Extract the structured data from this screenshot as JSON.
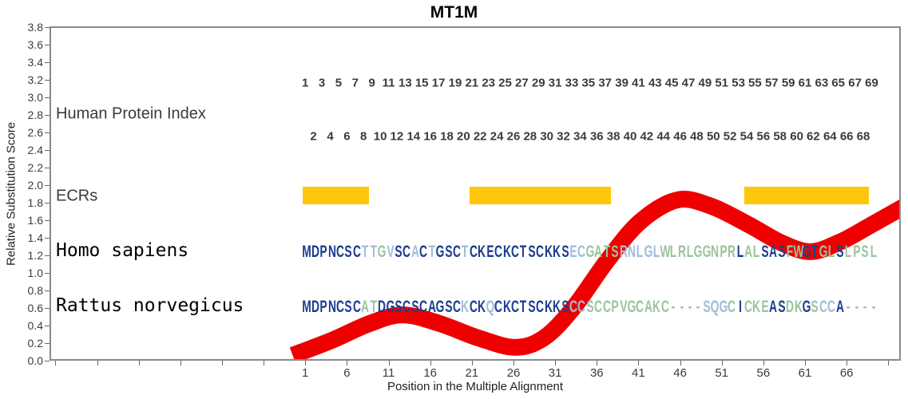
{
  "title": {
    "text": "MT1M"
  },
  "y_axis": {
    "label": "Relative Substitution Score",
    "tick_labels": [
      "3.8",
      "3.6",
      "3.4",
      "3.2",
      "3.0",
      "2.8",
      "2.6",
      "2.4",
      "2.2",
      "2.0",
      "1.8",
      "1.6",
      "1.4",
      "1.2",
      "1.0",
      "0.8",
      "0.6",
      "0.4",
      "0.2",
      "0.0"
    ]
  },
  "x_axis": {
    "label": "Position in the Multiple Alignment",
    "tick_labels": [
      1,
      6,
      11,
      16,
      21,
      26,
      31,
      36,
      41,
      46,
      51,
      56,
      61,
      66
    ]
  },
  "rows": {
    "index": {
      "label": "Human Protein Index",
      "odd_numbers": [
        1,
        3,
        5,
        7,
        9,
        11,
        13,
        15,
        17,
        19,
        21,
        23,
        25,
        27,
        29,
        31,
        33,
        35,
        37,
        39,
        41,
        43,
        45,
        47,
        49,
        51,
        53,
        55,
        57,
        59,
        61,
        63,
        65,
        67,
        69
      ],
      "even_numbers": [
        2,
        4,
        6,
        8,
        10,
        12,
        14,
        16,
        18,
        20,
        22,
        24,
        26,
        28,
        30,
        32,
        34,
        36,
        38,
        40,
        42,
        44,
        46,
        48,
        50,
        52,
        54,
        56,
        58,
        60,
        62,
        64,
        66,
        68
      ]
    },
    "ecrs": {
      "label": "ECRs",
      "bar_color": "#FFC60A",
      "regions": [
        {
          "start": 1,
          "end": 8
        },
        {
          "start": 21,
          "end": 37
        },
        {
          "start": 54,
          "end": 68
        }
      ]
    },
    "homo": {
      "label": "Homo sapiens",
      "sequence": "MDPNCSCTTGVSCACTGSCTCKECKCTSCKKSECGATSRNLGLWLRLGGNPRLALSASFWGTGLSLPSL",
      "letter_colors": "nnnnnnnbbgbnnbnbnnnbnnnnnnnnnnnnbbggggbbbbbgggggggggnggnnnggnnggngggg"
    },
    "rattus": {
      "label": "Rattus norvegicus",
      "sequence": "MDPNCSCATDGSCSCAGSCKCKQCKCTSCKKSCCSCCPVGCAKC----SQGCICKEASDKGSCCA----",
      "letter_colors": "nnnnnnnggnnnnnnnnnnbnnbnnnnnnnnnbbggggggggggggggbbbgngggnnggngbbngggg"
    }
  },
  "colors": {
    "n": "#1b3d8f",
    "b": "#a3bcd9",
    "g": "#9cc49e",
    "curve_red": "#EE0000",
    "bar_yellow": "#FFC60A",
    "axis_text": "#3c3c3c"
  },
  "chart_data": {
    "type": "line",
    "title": "MT1M",
    "xlabel": "Position in the Multiple Alignment",
    "ylabel": "Relative Substitution Score",
    "ylim": [
      0.0,
      3.8
    ],
    "y_tick_step": 0.2,
    "x_tick_labels": [
      1,
      6,
      11,
      16,
      21,
      26,
      31,
      36,
      41,
      46,
      51,
      56,
      61,
      66
    ],
    "alignment_length": 69,
    "series": [
      {
        "name": "relative-substitution-score-band",
        "color": "#EE0000",
        "band_thickness_score": 0.19,
        "points_position_score": [
          [
            -0.7,
            0.08
          ],
          [
            4,
            0.25
          ],
          [
            8.5,
            0.44
          ],
          [
            12.5,
            0.54
          ],
          [
            17,
            0.44
          ],
          [
            21.5,
            0.28
          ],
          [
            26,
            0.17
          ],
          [
            29.5,
            0.28
          ],
          [
            33,
            0.62
          ],
          [
            37,
            1.15
          ],
          [
            41,
            1.6
          ],
          [
            45.5,
            1.85
          ],
          [
            49.5,
            1.78
          ],
          [
            54,
            1.57
          ],
          [
            58,
            1.36
          ],
          [
            61.5,
            1.26
          ],
          [
            65,
            1.37
          ],
          [
            68.5,
            1.55
          ],
          [
            72.8,
            1.78
          ]
        ]
      }
    ],
    "ecr_regions_positions": [
      [
        1,
        8
      ],
      [
        21,
        37
      ],
      [
        54,
        68
      ]
    ],
    "ecr_band_score_range": [
      1.8,
      2.0
    ],
    "alignment": {
      "sequences": [
        {
          "species": "Homo sapiens",
          "sequence": "MDPNCSCTTGVSCACTGSCTCKECKCTSCKKSECGATSRNLGLWLRLGGNPRLALSASFWGTGLSLPSL"
        },
        {
          "species": "Rattus norvegicus",
          "sequence": "MDPNCSCATDGSCSCAGSCKCKQCKCTSCKKSCCSCCPVGCAKC----SQGCICKEASDKGSCCA----"
        }
      ]
    }
  }
}
